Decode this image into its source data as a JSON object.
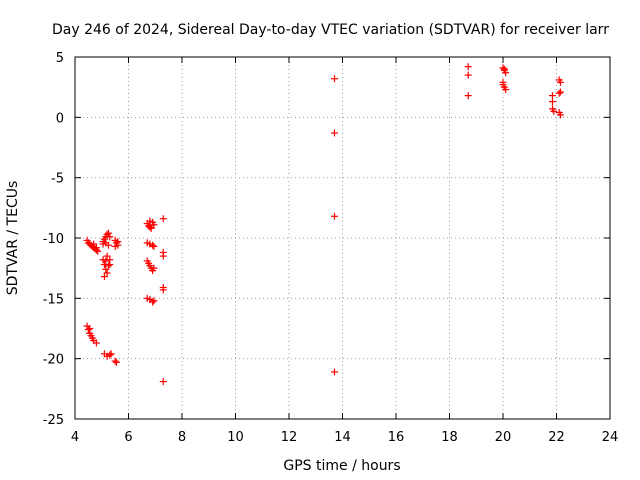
{
  "chart_data": {
    "type": "scatter",
    "title": "Day 246 of 2024, Sidereal Day-to-day VTEC variation (SDTVAR) for receiver larr",
    "xlabel": "GPS time / hours",
    "ylabel": "SDTVAR / TECUs",
    "xlim": [
      4,
      24
    ],
    "ylim": [
      -25,
      5
    ],
    "xticks": [
      4,
      6,
      8,
      10,
      12,
      14,
      16,
      18,
      20,
      22,
      24
    ],
    "yticks": [
      -25,
      -20,
      -15,
      -10,
      -5,
      0,
      5
    ],
    "grid": true,
    "marker": "+",
    "color": "#ff0000",
    "series": [
      {
        "name": "SDTVAR",
        "points": [
          [
            4.45,
            -10.2
          ],
          [
            4.5,
            -10.4
          ],
          [
            4.55,
            -10.5
          ],
          [
            4.6,
            -10.6
          ],
          [
            4.65,
            -10.7
          ],
          [
            4.7,
            -10.8
          ],
          [
            4.75,
            -10.9
          ],
          [
            4.8,
            -11.0
          ],
          [
            4.85,
            -11.1
          ],
          [
            4.7,
            -10.5
          ],
          [
            4.8,
            -10.8
          ],
          [
            4.45,
            -17.3
          ],
          [
            4.5,
            -17.6
          ],
          [
            4.55,
            -17.9
          ],
          [
            4.6,
            -18.1
          ],
          [
            4.65,
            -18.3
          ],
          [
            4.7,
            -18.5
          ],
          [
            4.8,
            -18.7
          ],
          [
            4.55,
            -17.5
          ],
          [
            5.05,
            -10.3
          ],
          [
            5.1,
            -10.1
          ],
          [
            5.15,
            -9.9
          ],
          [
            5.2,
            -9.7
          ],
          [
            5.25,
            -9.6
          ],
          [
            5.3,
            -9.9
          ],
          [
            5.05,
            -10.5
          ],
          [
            5.15,
            -10.4
          ],
          [
            5.25,
            -10.6
          ],
          [
            5.05,
            -11.8
          ],
          [
            5.1,
            -12.2
          ],
          [
            5.15,
            -12.6
          ],
          [
            5.2,
            -12.9
          ],
          [
            5.1,
            -13.2
          ],
          [
            5.25,
            -12.3
          ],
          [
            5.3,
            -11.8
          ],
          [
            5.2,
            -11.5
          ],
          [
            5.15,
            -11.9
          ],
          [
            5.3,
            -12.2
          ],
          [
            5.1,
            -19.6
          ],
          [
            5.2,
            -19.8
          ],
          [
            5.3,
            -19.7
          ],
          [
            5.35,
            -19.6
          ],
          [
            5.5,
            -10.2
          ],
          [
            5.55,
            -10.4
          ],
          [
            5.6,
            -10.6
          ],
          [
            5.5,
            -10.7
          ],
          [
            5.6,
            -10.3
          ],
          [
            5.5,
            -20.2
          ],
          [
            5.55,
            -20.3
          ],
          [
            6.7,
            -8.8
          ],
          [
            6.75,
            -9.0
          ],
          [
            6.8,
            -9.1
          ],
          [
            6.85,
            -9.2
          ],
          [
            6.9,
            -8.7
          ],
          [
            6.95,
            -8.9
          ],
          [
            6.8,
            -8.6
          ],
          [
            6.7,
            -10.4
          ],
          [
            6.8,
            -10.5
          ],
          [
            6.9,
            -10.6
          ],
          [
            6.95,
            -10.7
          ],
          [
            6.7,
            -11.9
          ],
          [
            6.75,
            -12.1
          ],
          [
            6.8,
            -12.3
          ],
          [
            6.85,
            -12.5
          ],
          [
            6.9,
            -12.7
          ],
          [
            6.95,
            -12.5
          ],
          [
            6.7,
            -15.0
          ],
          [
            6.8,
            -15.1
          ],
          [
            6.9,
            -15.3
          ],
          [
            6.95,
            -15.2
          ],
          [
            7.3,
            -8.4
          ],
          [
            7.3,
            -11.2
          ],
          [
            7.3,
            -11.5
          ],
          [
            7.3,
            -14.1
          ],
          [
            7.3,
            -14.3
          ],
          [
            7.3,
            -21.9
          ],
          [
            13.7,
            3.2
          ],
          [
            13.7,
            -1.3
          ],
          [
            13.7,
            -8.2
          ],
          [
            13.7,
            -21.1
          ],
          [
            18.7,
            4.2
          ],
          [
            18.7,
            3.5
          ],
          [
            18.7,
            1.8
          ],
          [
            20.0,
            4.1
          ],
          [
            20.05,
            3.9
          ],
          [
            20.1,
            3.7
          ],
          [
            20.05,
            4.0
          ],
          [
            20.0,
            2.7
          ],
          [
            20.05,
            2.5
          ],
          [
            20.1,
            2.3
          ],
          [
            20.0,
            2.9
          ],
          [
            21.85,
            1.8
          ],
          [
            21.85,
            1.3
          ],
          [
            21.85,
            0.7
          ],
          [
            21.9,
            0.5
          ],
          [
            22.1,
            3.1
          ],
          [
            22.15,
            2.9
          ],
          [
            22.1,
            2.0
          ],
          [
            22.15,
            2.1
          ],
          [
            22.1,
            0.4
          ],
          [
            22.15,
            0.2
          ]
        ]
      }
    ]
  }
}
